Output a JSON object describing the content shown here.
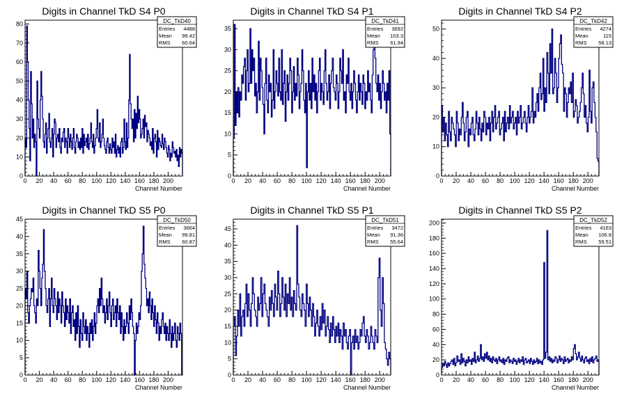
{
  "canvas_bg": "#ffffff",
  "line_color": "#000080",
  "stats_labels": {
    "entries": "Entries",
    "mean": "Mean",
    "rms": "RMS"
  },
  "chart_data": [
    {
      "type": "histogram",
      "title": "Digits in Channel TkD S4 P0",
      "xlabel": "Channel Number",
      "ylabel": "",
      "xlim": [
        0,
        220
      ],
      "ylim": [
        0,
        82
      ],
      "xticks": [
        0,
        20,
        40,
        60,
        80,
        100,
        120,
        140,
        160,
        180,
        200
      ],
      "yticks": [
        0,
        10,
        20,
        30,
        40,
        50,
        60,
        70,
        80
      ],
      "stats": {
        "name": "DC_TkD40",
        "entries": "4488",
        "mean": "99.42",
        "rms": "60.64"
      },
      "values": [
        20,
        15,
        79,
        60,
        40,
        25,
        8,
        55,
        38,
        20,
        30,
        15,
        22,
        18,
        0,
        50,
        30,
        25,
        20,
        40,
        55,
        42,
        30,
        18,
        15,
        22,
        28,
        12,
        20,
        25,
        33,
        18,
        15,
        20,
        25,
        10,
        22,
        30,
        28,
        15,
        20,
        22,
        18,
        25,
        15,
        12,
        20,
        18,
        23,
        25,
        15,
        20,
        18,
        12,
        25,
        20,
        15,
        22,
        18,
        14,
        20,
        25,
        15,
        12,
        18,
        22,
        20,
        15,
        18,
        14,
        20,
        15,
        25,
        12,
        22,
        16,
        18,
        20,
        15,
        22,
        14,
        17,
        20,
        28,
        18,
        15,
        22,
        12,
        16,
        20,
        25,
        35,
        20,
        18,
        28,
        15,
        18,
        22,
        30,
        20,
        16,
        14,
        12,
        18,
        20,
        15,
        12,
        17,
        14,
        12,
        20,
        15,
        18,
        12,
        22,
        10,
        14,
        16,
        12,
        15,
        10,
        18,
        20,
        12,
        15,
        30,
        18,
        14,
        28,
        15,
        20,
        40,
        64,
        38,
        30,
        25,
        30,
        18,
        35,
        20,
        33,
        25,
        42,
        28,
        35,
        30,
        20,
        22,
        25,
        30,
        20,
        32,
        26,
        28,
        18,
        24,
        22,
        20,
        16,
        18,
        14,
        25,
        12,
        20,
        22,
        18,
        10,
        24,
        14,
        20,
        18,
        16,
        15,
        22,
        17,
        14,
        20,
        18,
        15,
        12,
        10,
        16,
        14,
        8,
        12,
        10,
        18,
        15,
        12,
        13,
        10,
        14,
        8,
        11,
        5,
        15,
        10,
        14,
        12
      ]
    },
    {
      "type": "histogram",
      "title": "Digits in Channel TkD S4 P1",
      "xlabel": "Channel Number",
      "ylabel": "",
      "xlim": [
        0,
        215
      ],
      "ylim": [
        0,
        37
      ],
      "xticks": [
        0,
        20,
        40,
        60,
        80,
        100,
        120,
        140,
        160,
        180,
        200
      ],
      "yticks": [
        0,
        5,
        10,
        15,
        20,
        25,
        30,
        35
      ],
      "stats": {
        "name": "DC_TkD41",
        "entries": "3692",
        "mean": "103.3",
        "rms": "61.94"
      },
      "values": [
        9,
        36,
        12,
        20,
        15,
        21,
        14,
        20,
        18,
        24,
        22,
        26,
        28,
        18,
        25,
        30,
        20,
        22,
        35,
        22,
        30,
        25,
        28,
        19,
        22,
        15,
        20,
        32,
        18,
        28,
        25,
        21,
        17,
        10,
        22,
        28,
        18,
        15,
        24,
        20,
        22,
        14,
        18,
        30,
        16,
        20,
        25,
        22,
        19,
        28,
        20,
        18,
        30,
        17,
        22,
        25,
        13,
        20,
        24,
        18,
        22,
        28,
        25,
        15,
        20,
        26,
        18,
        22,
        19,
        28,
        24,
        16,
        20,
        22,
        30,
        25,
        18,
        15,
        22,
        2,
        20,
        25,
        18,
        22,
        16,
        28,
        20,
        24,
        18,
        22,
        15,
        20,
        25,
        28,
        18,
        22,
        20,
        17,
        25,
        30,
        22,
        18,
        20,
        24,
        16,
        22,
        25,
        28,
        21,
        20,
        18,
        24,
        22,
        16,
        20,
        28,
        25,
        22,
        30,
        18,
        20,
        15,
        24,
        22,
        28,
        20,
        18,
        22,
        16,
        20,
        25,
        22,
        18,
        15,
        20,
        24,
        18,
        22,
        20,
        17,
        24,
        22,
        16,
        20,
        18,
        25,
        20,
        22,
        18,
        15,
        24,
        30,
        35,
        28,
        22,
        20,
        24,
        18,
        22,
        16,
        20,
        25,
        22,
        18,
        20,
        15,
        22,
        18,
        25,
        10
      ]
    },
    {
      "type": "histogram",
      "title": "Digits in Channel TkD S4 P2",
      "xlabel": "Channel Number",
      "ylabel": "",
      "xlim": [
        0,
        215
      ],
      "ylim": [
        0,
        53
      ],
      "xticks": [
        0,
        20,
        40,
        60,
        80,
        100,
        120,
        140,
        160,
        180,
        200
      ],
      "yticks": [
        0,
        10,
        20,
        30,
        40,
        50
      ],
      "stats": {
        "name": "DC_TkD42",
        "entries": "4274",
        "mean": "115",
        "rms": "58.13"
      },
      "values": [
        24,
        15,
        20,
        12,
        18,
        14,
        10,
        22,
        15,
        12,
        20,
        18,
        16,
        14,
        10,
        22,
        18,
        12,
        16,
        14,
        20,
        25,
        18,
        12,
        15,
        20,
        22,
        10,
        16,
        14,
        18,
        20,
        14,
        12,
        16,
        22,
        18,
        14,
        20,
        16,
        12,
        18,
        15,
        22,
        20,
        14,
        18,
        16,
        20,
        12,
        18,
        22,
        15,
        20,
        24,
        16,
        18,
        20,
        22,
        14,
        16,
        18,
        20,
        12,
        22,
        15,
        18,
        20,
        16,
        24,
        18,
        20,
        22,
        16,
        18,
        20,
        14,
        22,
        18,
        20,
        24,
        16,
        18,
        20,
        22,
        18,
        15,
        20,
        24,
        18,
        20,
        22,
        30,
        18,
        22,
        20,
        25,
        28,
        22,
        30,
        35,
        26,
        28,
        40,
        22,
        30,
        25,
        42,
        35,
        28,
        45,
        35,
        50,
        28,
        30,
        40,
        35,
        25,
        30,
        40,
        45,
        48,
        38,
        35,
        22,
        30,
        28,
        20,
        25,
        30,
        28,
        32,
        25,
        35,
        20,
        22,
        26,
        24,
        18,
        20,
        22,
        25,
        30,
        35,
        28,
        20,
        24,
        18,
        15,
        20,
        36,
        22,
        18,
        30,
        32,
        25,
        20,
        15,
        6,
        5
      ]
    },
    {
      "type": "histogram",
      "title": "Digits in Channel TkD S5 P0",
      "xlabel": "Channel Number",
      "ylabel": "",
      "xlim": [
        0,
        220
      ],
      "ylim": [
        0,
        45
      ],
      "xticks": [
        0,
        20,
        40,
        60,
        80,
        100,
        120,
        140,
        160,
        180,
        200
      ],
      "yticks": [
        0,
        5,
        10,
        15,
        20,
        25,
        30,
        35,
        40,
        45
      ],
      "stats": {
        "name": "DC_TkD50",
        "entries": "3664",
        "mean": "99.81",
        "rms": "60.87"
      },
      "values": [
        25,
        22,
        30,
        18,
        15,
        20,
        22,
        25,
        24,
        28,
        20,
        18,
        15,
        22,
        20,
        36,
        30,
        25,
        20,
        28,
        32,
        42,
        30,
        25,
        20,
        18,
        22,
        25,
        14,
        22,
        28,
        20,
        18,
        25,
        22,
        20,
        16,
        24,
        18,
        22,
        20,
        15,
        24,
        20,
        18,
        14,
        22,
        16,
        20,
        18,
        15,
        22,
        12,
        18,
        20,
        14,
        16,
        10,
        18,
        12,
        20,
        14,
        8,
        16,
        12,
        10,
        18,
        14,
        12,
        16,
        10,
        14,
        12,
        8,
        15,
        12,
        16,
        10,
        14,
        18,
        12,
        15,
        20,
        22,
        18,
        25,
        20,
        28,
        22,
        18,
        20,
        15,
        18,
        22,
        16,
        20,
        24,
        18,
        14,
        20,
        22,
        16,
        18,
        20,
        14,
        22,
        18,
        16,
        20,
        12,
        18,
        14,
        10,
        16,
        12,
        14,
        18,
        15,
        12,
        20,
        16,
        22,
        18,
        14,
        12,
        0,
        10,
        15,
        12,
        14,
        18,
        16,
        20,
        30,
        35,
        43,
        32,
        28,
        25,
        20,
        22,
        18,
        24,
        20,
        16,
        22,
        18,
        14,
        20,
        16,
        12,
        18,
        15,
        10,
        14,
        12,
        16,
        18,
        14,
        12,
        15,
        10,
        14,
        12,
        10,
        16,
        12,
        8,
        14,
        10,
        12,
        15,
        10,
        8,
        14,
        12,
        10,
        15,
        12,
        0
      ]
    },
    {
      "type": "histogram",
      "title": "Digits in Channel TkD S5 P1",
      "xlabel": "Channel Number",
      "ylabel": "",
      "xlim": [
        0,
        215
      ],
      "ylim": [
        0,
        48
      ],
      "xticks": [
        0,
        20,
        40,
        60,
        80,
        100,
        120,
        140,
        160,
        180,
        200
      ],
      "yticks": [
        0,
        5,
        10,
        15,
        20,
        25,
        30,
        35,
        40,
        45
      ],
      "stats": {
        "name": "DC_TkD51",
        "entries": "3472",
        "mean": "91.36",
        "rms": "55.64"
      },
      "values": [
        15,
        18,
        6,
        12,
        20,
        15,
        25,
        12,
        18,
        20,
        15,
        22,
        28,
        18,
        25,
        20,
        15,
        22,
        30,
        25,
        20,
        18,
        15,
        24,
        20,
        22,
        30,
        18,
        25,
        28,
        22,
        20,
        18,
        15,
        24,
        20,
        26,
        22,
        18,
        28,
        24,
        20,
        32,
        25,
        18,
        22,
        30,
        24,
        20,
        28,
        18,
        25,
        22,
        30,
        20,
        24,
        18,
        26,
        22,
        20,
        46,
        28,
        24,
        20,
        18,
        25,
        22,
        20,
        15,
        28,
        22,
        18,
        24,
        20,
        15,
        22,
        18,
        12,
        16,
        20,
        15,
        12,
        18,
        14,
        22,
        16,
        20,
        12,
        15,
        18,
        14,
        10,
        16,
        12,
        18,
        14,
        10,
        15,
        12,
        16,
        10,
        14,
        12,
        8,
        16,
        12,
        14,
        10,
        8,
        12,
        14,
        0,
        10,
        12,
        8,
        14,
        10,
        12,
        8,
        10,
        14,
        12,
        16,
        18,
        12,
        10,
        14,
        12,
        8,
        10,
        15,
        12,
        10,
        8,
        14,
        12,
        10,
        30,
        36,
        20,
        15,
        30,
        22,
        10,
        8,
        5,
        3,
        7,
        5
      ]
    },
    {
      "type": "histogram",
      "title": "Digits in Channel TkD S5 P2",
      "xlabel": "Channel Number",
      "ylabel": "",
      "xlim": [
        0,
        215
      ],
      "ylim": [
        0,
        205
      ],
      "xticks": [
        0,
        20,
        40,
        60,
        80,
        100,
        120,
        140,
        160,
        180,
        200
      ],
      "yticks": [
        0,
        20,
        40,
        60,
        80,
        100,
        120,
        140,
        160,
        180,
        200
      ],
      "stats": {
        "name": "DC_TkD52",
        "entries": "4163",
        "mean": "106.8",
        "rms": "59.51"
      },
      "values": [
        10,
        15,
        12,
        18,
        14,
        10,
        16,
        12,
        15,
        18,
        20,
        14,
        22,
        12,
        16,
        25,
        18,
        20,
        14,
        28,
        16,
        22,
        18,
        12,
        20,
        16,
        24,
        18,
        20,
        14,
        22,
        18,
        30,
        16,
        20,
        25,
        18,
        22,
        40,
        20,
        24,
        18,
        28,
        22,
        30,
        20,
        25,
        18,
        22,
        16,
        24,
        20,
        18,
        22,
        15,
        20,
        24,
        18,
        20,
        16,
        22,
        14,
        20,
        18,
        22,
        24,
        16,
        20,
        18,
        15,
        22,
        18,
        20,
        14,
        18,
        22,
        16,
        20,
        18,
        24,
        14,
        20,
        22,
        16,
        18,
        20,
        15,
        22,
        18,
        14,
        20,
        16,
        18,
        22,
        15,
        20,
        16,
        18,
        14,
        20,
        148,
        22,
        30,
        190,
        20,
        24,
        18,
        22,
        16,
        20,
        18,
        24,
        22,
        16,
        20,
        25,
        18,
        22,
        20,
        15,
        24,
        18,
        20,
        22,
        16,
        20,
        18,
        24,
        20,
        35,
        40,
        28,
        20,
        24,
        30,
        22,
        18,
        25,
        20,
        16,
        22,
        24,
        18,
        20,
        15,
        22,
        18,
        24,
        16,
        20,
        22,
        25,
        18,
        20
      ]
    }
  ]
}
